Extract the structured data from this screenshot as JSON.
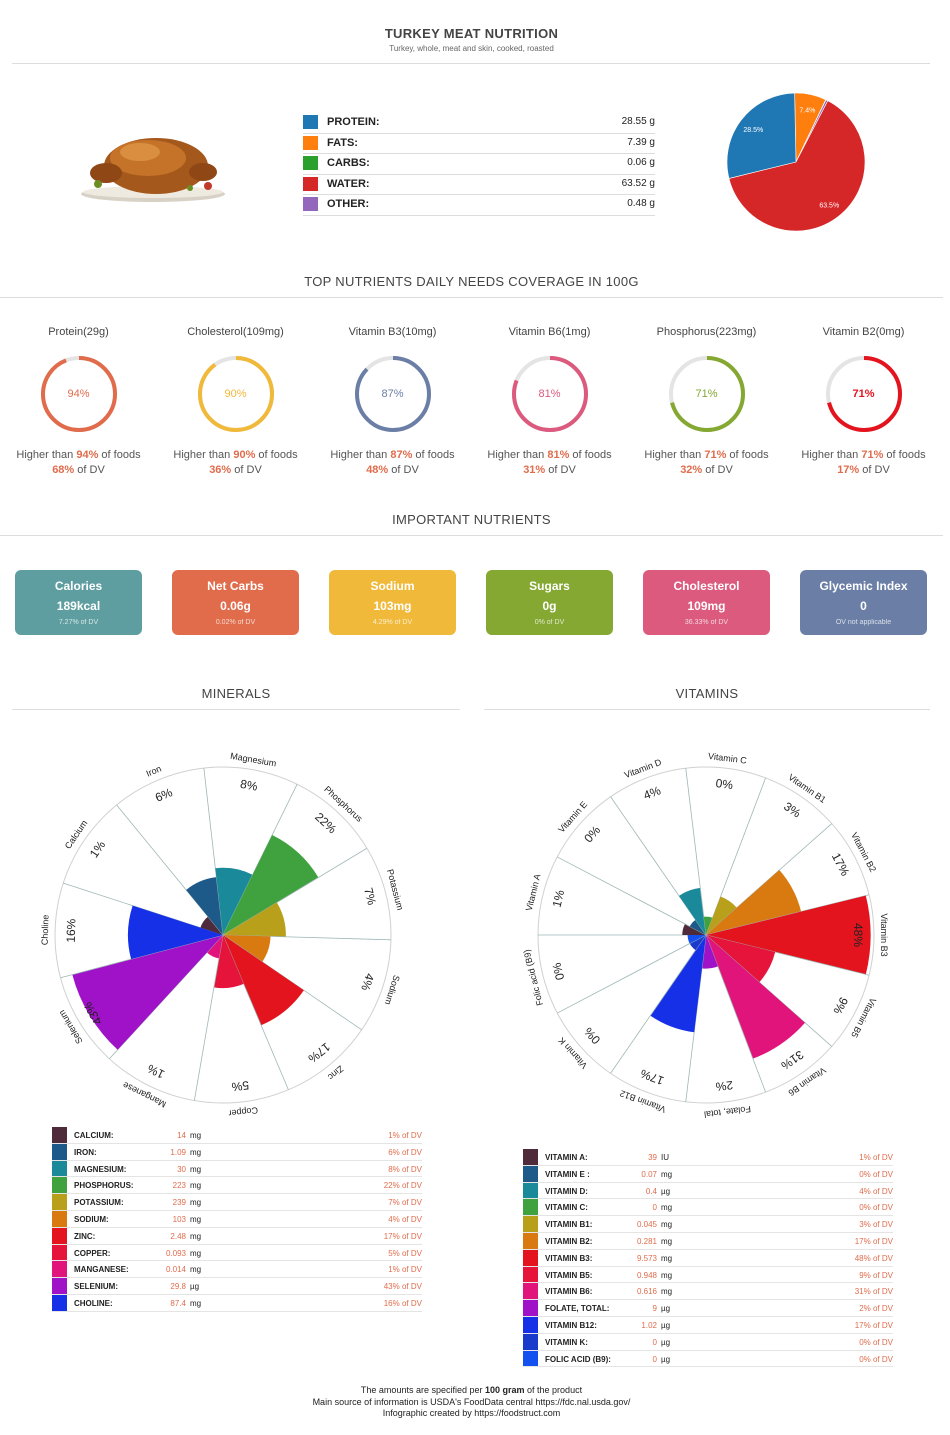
{
  "header": {
    "title": "TURKEY MEAT NUTRITION",
    "subtitle": "Turkey, whole, meat and skin, cooked, roasted"
  },
  "macro_table": [
    {
      "label": "PROTEIN:",
      "value": "28.55 g",
      "color": "#1f77b4"
    },
    {
      "label": "FATS:",
      "value": "7.39 g",
      "color": "#ff7f0e"
    },
    {
      "label": "CARBS:",
      "value": "0.06 g",
      "color": "#2ca02c"
    },
    {
      "label": "WATER:",
      "value": "63.52 g",
      "color": "#d62728"
    },
    {
      "label": "OTHER:",
      "value": "0.48 g",
      "color": "#9467bd"
    }
  ],
  "chart_data": [
    {
      "type": "pie",
      "categories": [
        "Protein",
        "Fats",
        "Carbs",
        "Water",
        "Other"
      ],
      "values": [
        28.5,
        7.4,
        0.06,
        63.5,
        0.48
      ],
      "labels": [
        "28.5%",
        "7.4%",
        "",
        "63.5%",
        ""
      ],
      "colors": [
        "#1f77b4",
        "#ff7f0e",
        "#2ca02c",
        "#d62728",
        "#9467bd"
      ]
    },
    {
      "type": "polar-area",
      "title": "MINERALS",
      "categories": [
        "Calcium",
        "Iron",
        "Magnesium",
        "Phosphorus",
        "Potassium",
        "Sodium",
        "Zinc",
        "Copper",
        "Manganese",
        "Selenium",
        "Choline"
      ],
      "values": [
        1,
        6,
        8,
        22,
        7,
        4,
        17,
        5,
        1,
        43,
        16
      ],
      "labels": [
        "1%",
        "6%",
        "8%",
        "22%",
        "7%",
        "4%",
        "17%",
        "5%",
        "1%",
        "43%",
        "16%"
      ],
      "colors": [
        "#4e2a3a",
        "#1d5a8a",
        "#1a8a9a",
        "#3fa23f",
        "#b8a01a",
        "#d87a10",
        "#e3141e",
        "#e6143a",
        "#e0147a",
        "#a012c8",
        "#1630e8"
      ],
      "rmax": 50
    },
    {
      "type": "polar-area",
      "title": "VITAMINS",
      "categories": [
        "Vitamin A",
        "Vitamin E",
        "Vitamin D",
        "Vitamin C",
        "Vitamin B1",
        "Vitamin B2",
        "Vitamin B3",
        "Vitamin B5",
        "Vitamin B6",
        "Folate, total",
        "Vitamin B12",
        "Vitamin K",
        "Folic acid (B9)"
      ],
      "values": [
        1,
        0,
        4,
        0,
        3,
        17,
        48,
        9,
        31,
        2,
        17,
        0,
        0
      ],
      "labels": [
        "1%",
        "0%",
        "4%",
        "0%",
        "3%",
        "17%",
        "48%",
        "9%",
        "31%",
        "2%",
        "17%",
        "0%",
        "0%"
      ],
      "colors": [
        "#4e2a3a",
        "#1d5a8a",
        "#1a8a9a",
        "#3fa23f",
        "#b8a01a",
        "#d87a10",
        "#e3141e",
        "#e6143a",
        "#e0147a",
        "#a012c8",
        "#1630e8",
        "#1a3acc",
        "#1450f0"
      ],
      "rmax": 50
    }
  ],
  "coverage": {
    "title": "TOP NUTRIENTS DAILY NEEDS COVERAGE IN 100G",
    "items": [
      {
        "name": "Protein(29g)",
        "pct": "94%",
        "value": 94,
        "higher": "94%",
        "dv": "68%",
        "color": "#e06c4c"
      },
      {
        "name": "Cholesterol(109mg)",
        "pct": "90%",
        "value": 90,
        "higher": "90%",
        "dv": "36%",
        "color": "#f0b93a"
      },
      {
        "name": "Vitamin B3(10mg)",
        "pct": "87%",
        "value": 87,
        "higher": "87%",
        "dv": "48%",
        "color": "#6b7fa6"
      },
      {
        "name": "Vitamin B6(1mg)",
        "pct": "81%",
        "value": 81,
        "higher": "81%",
        "dv": "31%",
        "color": "#db5a7e"
      },
      {
        "name": "Phosphorus(223mg)",
        "pct": "71%",
        "value": 71,
        "higher": "71%",
        "dv": "32%",
        "color": "#85a833"
      },
      {
        "name": "Vitamin B2(0mg)",
        "pct": "71%",
        "value": 71,
        "higher": "71%",
        "dv": "17%",
        "color": "#e3141e"
      }
    ],
    "higher_prefix": "Higher than ",
    "higher_suffix": " of foods",
    "dv_suffix": " of DV"
  },
  "important": {
    "title": "IMPORTANT NUTRIENTS",
    "cards": [
      {
        "name": "Calories",
        "value": "189kcal",
        "dv": "7.27% of DV",
        "color": "#5f9ea0"
      },
      {
        "name": "Net Carbs",
        "value": "0.06g",
        "dv": "0.02% of DV",
        "color": "#e06c4c"
      },
      {
        "name": "Sodium",
        "value": "103mg",
        "dv": "4.29% of DV",
        "color": "#f0b93a"
      },
      {
        "name": "Sugars",
        "value": "0g",
        "dv": "0% of DV",
        "color": "#85a833"
      },
      {
        "name": "Cholesterol",
        "value": "109mg",
        "dv": "36.33% of DV",
        "color": "#db5a7e"
      },
      {
        "name": "Glycemic Index",
        "value": "0",
        "dv": "OV not applicable",
        "color": "#6b7fa6"
      }
    ]
  },
  "minerals_title": "MINERALS",
  "vitamins_title": "VITAMINS",
  "minerals_table": [
    {
      "name": "CALCIUM:",
      "amount": "14",
      "unit": "mg",
      "dv": "1%"
    },
    {
      "name": "IRON:",
      "amount": "1.09",
      "unit": "mg",
      "dv": "6%"
    },
    {
      "name": "MAGNESIUM:",
      "amount": "30",
      "unit": "mg",
      "dv": "8%"
    },
    {
      "name": "PHOSPHORUS:",
      "amount": "223",
      "unit": "mg",
      "dv": "22%"
    },
    {
      "name": "POTASSIUM:",
      "amount": "239",
      "unit": "mg",
      "dv": "7%"
    },
    {
      "name": "SODIUM:",
      "amount": "103",
      "unit": "mg",
      "dv": "4%"
    },
    {
      "name": "ZINC:",
      "amount": "2.48",
      "unit": "mg",
      "dv": "17%"
    },
    {
      "name": "COPPER:",
      "amount": "0.093",
      "unit": "mg",
      "dv": "5%"
    },
    {
      "name": "MANGANESE:",
      "amount": "0.014",
      "unit": "mg",
      "dv": "1%"
    },
    {
      "name": "SELENIUM:",
      "amount": "29.8",
      "unit": "µg",
      "dv": "43%"
    },
    {
      "name": "CHOLINE:",
      "amount": "87.4",
      "unit": "mg",
      "dv": "16%"
    }
  ],
  "vitamins_table": [
    {
      "name": "VITAMIN A:",
      "amount": "39",
      "unit": "IU",
      "dv": "1%"
    },
    {
      "name": "VITAMIN E :",
      "amount": "0.07",
      "unit": "mg",
      "dv": "0%"
    },
    {
      "name": "VITAMIN D:",
      "amount": "0.4",
      "unit": "µg",
      "dv": "4%"
    },
    {
      "name": "VITAMIN C:",
      "amount": "0",
      "unit": "mg",
      "dv": "0%"
    },
    {
      "name": "VITAMIN B1:",
      "amount": "0.045",
      "unit": "mg",
      "dv": "3%"
    },
    {
      "name": "VITAMIN B2:",
      "amount": "0.281",
      "unit": "mg",
      "dv": "17%"
    },
    {
      "name": "VITAMIN B3:",
      "amount": "9.573",
      "unit": "mg",
      "dv": "48%"
    },
    {
      "name": "VITAMIN B5:",
      "amount": "0.948",
      "unit": "mg",
      "dv": "9%"
    },
    {
      "name": "VITAMIN B6:",
      "amount": "0.616",
      "unit": "mg",
      "dv": "31%"
    },
    {
      "name": "FOLATE, TOTAL:",
      "amount": "9",
      "unit": "µg",
      "dv": "2%"
    },
    {
      "name": "VITAMIN B12:",
      "amount": "1.02",
      "unit": "µg",
      "dv": "17%"
    },
    {
      "name": "VITAMIN K:",
      "amount": "0",
      "unit": "µg",
      "dv": "0%"
    },
    {
      "name": "FOLIC ACID (B9):",
      "amount": "0",
      "unit": "µg",
      "dv": "0%"
    }
  ],
  "dv_label": "of DV",
  "footer": {
    "line1_prefix": "The amounts are specified per ",
    "line1_bold": "100 gram",
    "line1_suffix": " of the product",
    "line2": "Main source of information is USDA's FoodData central https://fdc.nal.usda.gov/",
    "line3": "Infographic created by https://foodstruct.com"
  }
}
